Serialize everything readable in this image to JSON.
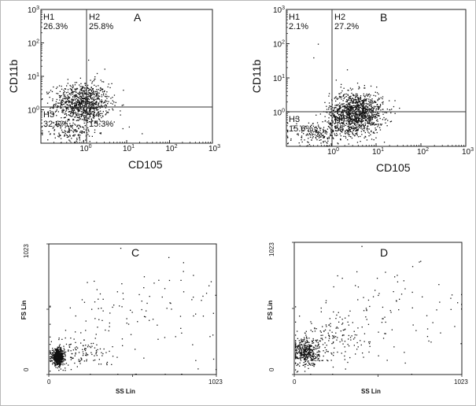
{
  "chart_data": [
    {
      "id": "A",
      "type": "scatter",
      "panel_label": "A",
      "xlabel": "CD105",
      "ylabel": "CD11b",
      "scale": "log",
      "xlim_decades": [
        -1,
        3
      ],
      "ylim_decades": [
        -1,
        3
      ],
      "x_ticks": [
        {
          "base": "10",
          "exp": "0",
          "decade": 0
        },
        {
          "base": "10",
          "exp": "1",
          "decade": 1
        },
        {
          "base": "10",
          "exp": "2",
          "decade": 2
        },
        {
          "base": "10",
          "exp": "3",
          "decade": 3
        }
      ],
      "y_ticks": [
        {
          "base": "10",
          "exp": "0",
          "decade": 0
        },
        {
          "base": "10",
          "exp": "1",
          "decade": 1
        },
        {
          "base": "10",
          "exp": "2",
          "decade": 2
        },
        {
          "base": "10",
          "exp": "3",
          "decade": 3
        }
      ],
      "quadrant_gate": {
        "x_decade": 0,
        "y_decade": 0
      },
      "quadrants": [
        {
          "name": "H1",
          "percent": "26.3%",
          "position": "top-left"
        },
        {
          "name": "H2",
          "percent": "25.8%",
          "position": "top-right"
        },
        {
          "name": "H3",
          "percent": "32.6%",
          "position": "bottom-left"
        },
        {
          "name": "H4",
          "percent": "15.3%",
          "position": "bottom-right"
        }
      ],
      "clusters": [
        {
          "center_decades": [
            -0.05,
            0.2
          ],
          "spread_decades": [
            0.32,
            0.3
          ],
          "count": 950
        },
        {
          "center_decades": [
            -0.3,
            -0.65
          ],
          "spread_decades": [
            0.3,
            0.15
          ],
          "count": 140
        }
      ],
      "sparse_points_decades": [
        [
          0.1,
          1.5
        ],
        [
          0.3,
          1.1
        ],
        [
          0.45,
          0.85
        ],
        [
          0.9,
          -0.55
        ],
        [
          1.35,
          -0.7
        ],
        [
          1.05,
          -0.5
        ],
        [
          0.7,
          -0.35
        ],
        [
          0.25,
          1.0
        ],
        [
          0.55,
          0.7
        ]
      ]
    },
    {
      "id": "B",
      "type": "scatter",
      "panel_label": "B",
      "xlabel": "CD105",
      "ylabel": "CD11b",
      "scale": "log",
      "xlim_decades": [
        -1,
        3
      ],
      "ylim_decades": [
        -1,
        3
      ],
      "x_ticks": [
        {
          "base": "10",
          "exp": "0",
          "decade": 0
        },
        {
          "base": "10",
          "exp": "1",
          "decade": 1
        },
        {
          "base": "10",
          "exp": "2",
          "decade": 2
        },
        {
          "base": "10",
          "exp": "3",
          "decade": 3
        }
      ],
      "y_ticks": [
        {
          "base": "10",
          "exp": "0",
          "decade": 0
        },
        {
          "base": "10",
          "exp": "1",
          "decade": 1
        },
        {
          "base": "10",
          "exp": "2",
          "decade": 2
        },
        {
          "base": "10",
          "exp": "3",
          "decade": 3
        }
      ],
      "quadrant_gate": {
        "x_decade": 0,
        "y_decade": 0
      },
      "quadrants": [
        {
          "name": "H1",
          "percent": "2.1%",
          "position": "top-left"
        },
        {
          "name": "H2",
          "percent": "27.2%",
          "position": "top-right"
        },
        {
          "name": "H3",
          "percent": "15.6%",
          "position": "bottom-left"
        },
        {
          "name": "H4",
          "percent": "55.1%",
          "position": "bottom-right"
        }
      ],
      "clusters": [
        {
          "center_decades": [
            0.55,
            0.0
          ],
          "spread_decades": [
            0.3,
            0.3
          ],
          "count": 1200
        },
        {
          "center_decades": [
            -0.25,
            -0.6
          ],
          "spread_decades": [
            0.35,
            0.18
          ],
          "count": 220
        }
      ],
      "sparse_points_decades": [
        [
          -0.3,
          2.0
        ],
        [
          -0.4,
          1.6
        ],
        [
          0.35,
          1.25
        ],
        [
          0.1,
          0.95
        ],
        [
          1.2,
          -0.3
        ],
        [
          0.95,
          -0.6
        ]
      ]
    },
    {
      "id": "C",
      "type": "scatter",
      "panel_label": "C",
      "xlabel": "SS Lin",
      "ylabel": "FS Lin",
      "scale": "linear",
      "xlim": [
        0,
        1023
      ],
      "ylim": [
        0,
        1023
      ],
      "x_ticks": [
        "0",
        "1023"
      ],
      "y_ticks": [
        "0",
        "1023"
      ],
      "clusters": [
        {
          "center": [
            55,
            140
          ],
          "spread": [
            18,
            30
          ],
          "count": 650
        },
        {
          "center": [
            180,
            170
          ],
          "spread": [
            90,
            60
          ],
          "count": 130
        },
        {
          "center": [
            520,
            460
          ],
          "spread": [
            280,
            200
          ],
          "count": 110
        }
      ],
      "sparse_points": [
        [
          730,
          920
        ],
        [
          820,
          880
        ],
        [
          880,
          780
        ],
        [
          960,
          640
        ],
        [
          640,
          720
        ],
        [
          450,
          640
        ],
        [
          300,
          520
        ]
      ]
    },
    {
      "id": "D",
      "type": "scatter",
      "panel_label": "D",
      "xlabel": "SS Lin",
      "ylabel": "FS Lin",
      "scale": "linear",
      "xlim": [
        0,
        1023
      ],
      "ylim": [
        0,
        1023
      ],
      "x_ticks": [
        "0",
        "1023"
      ],
      "y_ticks": [
        "0",
        "1023"
      ],
      "clusters": [
        {
          "center": [
            70,
            175
          ],
          "spread": [
            40,
            55
          ],
          "count": 380
        },
        {
          "center": [
            230,
            270
          ],
          "spread": [
            110,
            90
          ],
          "count": 160
        },
        {
          "center": [
            560,
            480
          ],
          "spread": [
            260,
            190
          ],
          "count": 90
        }
      ],
      "sparse_points": [
        [
          720,
          840
        ],
        [
          610,
          760
        ],
        [
          880,
          700
        ],
        [
          960,
          620
        ],
        [
          420,
          600
        ]
      ]
    }
  ]
}
